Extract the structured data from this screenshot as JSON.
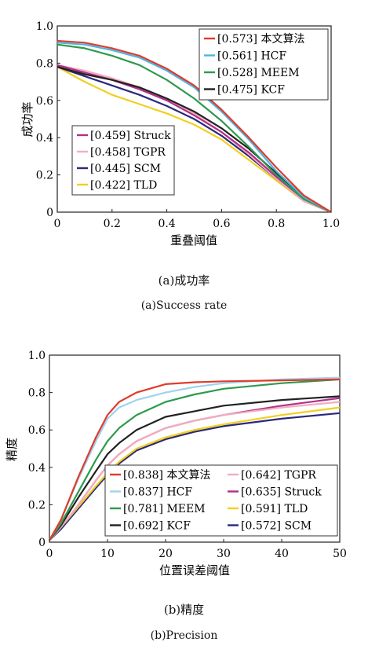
{
  "chart_data": [
    {
      "type": "line",
      "title": "",
      "xlabel": "重叠阈值",
      "ylabel": "成功率",
      "xlim": [
        0,
        1
      ],
      "ylim": [
        0,
        1
      ],
      "xticks": [
        "0",
        "0.2",
        "0.4",
        "0.6",
        "0.8",
        "1.0"
      ],
      "yticks": [
        "0",
        "0.2",
        "0.4",
        "0.6",
        "0.8",
        "1.0"
      ],
      "grid": false,
      "legends": [
        {
          "placement": "top-right",
          "entries": [
            "[0.573] 本文算法",
            "[0.561] HCF",
            "[0.528] MEEM",
            "[0.475] KCF"
          ]
        },
        {
          "placement": "lower-left",
          "entries": [
            "[0.459] Struck",
            "[0.458] TGPR",
            "[0.445] SCM",
            "[0.422] TLD"
          ]
        }
      ],
      "series": [
        {
          "name": "[0.573] 本文算法",
          "color": "#e03c2c",
          "x": [
            0,
            0.1,
            0.2,
            0.3,
            0.4,
            0.5,
            0.6,
            0.7,
            0.8,
            0.9,
            1.0
          ],
          "y": [
            0.92,
            0.91,
            0.88,
            0.84,
            0.77,
            0.68,
            0.55,
            0.4,
            0.24,
            0.09,
            0.0
          ]
        },
        {
          "name": "[0.561] HCF",
          "color": "#4ab6e6",
          "x": [
            0,
            0.1,
            0.2,
            0.3,
            0.4,
            0.5,
            0.6,
            0.7,
            0.8,
            0.9,
            1.0
          ],
          "y": [
            0.91,
            0.9,
            0.87,
            0.83,
            0.76,
            0.67,
            0.54,
            0.39,
            0.22,
            0.08,
            0.0
          ]
        },
        {
          "name": "[0.528] MEEM",
          "color": "#2e9a4c",
          "x": [
            0,
            0.1,
            0.2,
            0.3,
            0.4,
            0.5,
            0.6,
            0.7,
            0.8,
            0.9,
            1.0
          ],
          "y": [
            0.9,
            0.88,
            0.84,
            0.79,
            0.71,
            0.61,
            0.49,
            0.35,
            0.2,
            0.07,
            0.0
          ]
        },
        {
          "name": "[0.475] KCF",
          "color": "#222222",
          "x": [
            0,
            0.1,
            0.2,
            0.3,
            0.4,
            0.5,
            0.6,
            0.7,
            0.8,
            0.9,
            1.0
          ],
          "y": [
            0.78,
            0.74,
            0.71,
            0.67,
            0.61,
            0.54,
            0.45,
            0.34,
            0.21,
            0.08,
            0.0
          ]
        },
        {
          "name": "[0.459] Struck",
          "color": "#b0308a",
          "x": [
            0,
            0.1,
            0.2,
            0.3,
            0.4,
            0.5,
            0.6,
            0.7,
            0.8,
            0.9,
            1.0
          ],
          "y": [
            0.79,
            0.75,
            0.71,
            0.66,
            0.6,
            0.52,
            0.43,
            0.32,
            0.19,
            0.07,
            0.0
          ]
        },
        {
          "name": "[0.458] TGPR",
          "color": "#f2aebd",
          "x": [
            0,
            0.1,
            0.2,
            0.3,
            0.4,
            0.5,
            0.6,
            0.7,
            0.8,
            0.9,
            1.0
          ],
          "y": [
            0.79,
            0.76,
            0.72,
            0.67,
            0.61,
            0.53,
            0.43,
            0.31,
            0.18,
            0.06,
            0.0
          ]
        },
        {
          "name": "[0.445] SCM",
          "color": "#2a2a7a",
          "x": [
            0,
            0.1,
            0.2,
            0.3,
            0.4,
            0.5,
            0.6,
            0.7,
            0.8,
            0.9,
            1.0
          ],
          "y": [
            0.78,
            0.73,
            0.68,
            0.63,
            0.57,
            0.5,
            0.41,
            0.3,
            0.18,
            0.06,
            0.0
          ]
        },
        {
          "name": "[0.422] TLD",
          "color": "#f2cf1e",
          "x": [
            0,
            0.1,
            0.2,
            0.3,
            0.4,
            0.5,
            0.6,
            0.7,
            0.8,
            0.9,
            1.0
          ],
          "y": [
            0.78,
            0.7,
            0.63,
            0.58,
            0.53,
            0.47,
            0.39,
            0.28,
            0.17,
            0.06,
            0.0
          ]
        }
      ]
    },
    {
      "type": "line",
      "title": "",
      "xlabel": "位置误差阈值",
      "ylabel": "精度",
      "xlim": [
        0,
        50
      ],
      "ylim": [
        0,
        1
      ],
      "xticks": [
        "0",
        "10",
        "20",
        "30",
        "40",
        "50"
      ],
      "yticks": [
        "0",
        "0.2",
        "0.4",
        "0.6",
        "0.8",
        "1.0"
      ],
      "grid": false,
      "legends": [
        {
          "placement": "lower-right",
          "entries": [
            "[0.838] 本文算法",
            "[0.642] TGPR",
            "[0.837] HCF",
            "[0.635] Struck",
            "[0.781] MEEM",
            "[0.591] TLD",
            "[0.692] KCF",
            "[0.572] SCM"
          ]
        }
      ],
      "series": [
        {
          "name": "[0.838] 本文算法",
          "color": "#e03c2c",
          "x": [
            0,
            2,
            5,
            8,
            10,
            12,
            15,
            20,
            25,
            30,
            40,
            50
          ],
          "y": [
            0.01,
            0.12,
            0.35,
            0.56,
            0.68,
            0.75,
            0.8,
            0.845,
            0.855,
            0.86,
            0.865,
            0.87
          ]
        },
        {
          "name": "[0.837] HCF",
          "color": "#9fd3ee",
          "x": [
            0,
            2,
            5,
            8,
            10,
            12,
            15,
            20,
            25,
            30,
            40,
            50
          ],
          "y": [
            0.01,
            0.12,
            0.34,
            0.54,
            0.66,
            0.72,
            0.76,
            0.8,
            0.83,
            0.85,
            0.87,
            0.88
          ]
        },
        {
          "name": "[0.781] MEEM",
          "color": "#2e9a4c",
          "x": [
            0,
            2,
            5,
            8,
            10,
            12,
            15,
            20,
            25,
            30,
            40,
            50
          ],
          "y": [
            0.01,
            0.1,
            0.27,
            0.44,
            0.54,
            0.61,
            0.68,
            0.75,
            0.79,
            0.82,
            0.85,
            0.87
          ]
        },
        {
          "name": "[0.692] KCF",
          "color": "#222222",
          "x": [
            0,
            2,
            5,
            8,
            10,
            12,
            15,
            20,
            25,
            30,
            40,
            50
          ],
          "y": [
            0.01,
            0.09,
            0.24,
            0.38,
            0.47,
            0.53,
            0.6,
            0.67,
            0.7,
            0.73,
            0.76,
            0.78
          ]
        },
        {
          "name": "[0.642] TGPR",
          "color": "#f2aebd",
          "x": [
            0,
            2,
            5,
            8,
            10,
            12,
            15,
            20,
            25,
            30,
            40,
            50
          ],
          "y": [
            0.01,
            0.08,
            0.2,
            0.33,
            0.41,
            0.47,
            0.54,
            0.61,
            0.65,
            0.68,
            0.72,
            0.75
          ]
        },
        {
          "name": "[0.635] Struck",
          "color": "#b0308a",
          "x": [
            0,
            2,
            5,
            8,
            10,
            12,
            15,
            20,
            25,
            30,
            40,
            50
          ],
          "y": [
            0.01,
            0.08,
            0.2,
            0.33,
            0.41,
            0.47,
            0.54,
            0.61,
            0.65,
            0.68,
            0.73,
            0.77
          ]
        },
        {
          "name": "[0.591] TLD",
          "color": "#f2cf1e",
          "x": [
            0,
            2,
            5,
            8,
            10,
            12,
            15,
            20,
            25,
            30,
            40,
            50
          ],
          "y": [
            0.01,
            0.08,
            0.19,
            0.3,
            0.37,
            0.43,
            0.5,
            0.56,
            0.6,
            0.63,
            0.68,
            0.72
          ]
        },
        {
          "name": "[0.572] SCM",
          "color": "#2a2a7a",
          "x": [
            0,
            2,
            5,
            8,
            10,
            12,
            15,
            20,
            25,
            30,
            40,
            50
          ],
          "y": [
            0.01,
            0.07,
            0.18,
            0.29,
            0.36,
            0.42,
            0.49,
            0.55,
            0.59,
            0.62,
            0.66,
            0.69
          ]
        }
      ]
    }
  ],
  "captions": {
    "a_zh": "(a)成功率",
    "a_en": "(a)Success rate",
    "b_zh": "(b)精度",
    "b_en": "(b)Precision"
  }
}
